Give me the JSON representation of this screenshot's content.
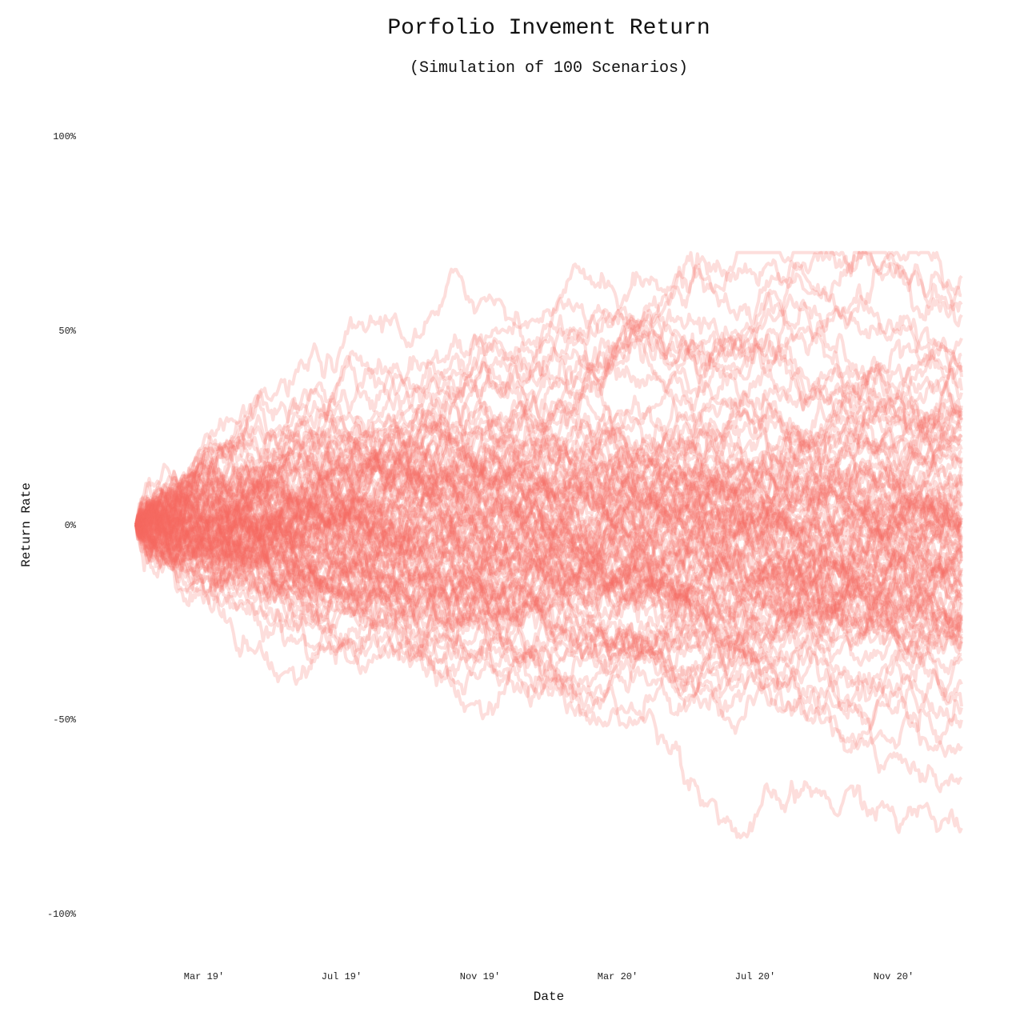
{
  "chart_data": {
    "type": "line",
    "title": "Porfolio Invement Return",
    "subtitle": "(Simulation of 100 Scenarios)",
    "xlabel": "Date",
    "ylabel": "Return Rate",
    "x_start": "2019-01",
    "x_end": "2021-01",
    "x_ticks": [
      "Mar 19'",
      "Jul 19'",
      "Nov 19'",
      "Mar 20'",
      "Jul 20'",
      "Nov 20'"
    ],
    "y_ticks": [
      "100%",
      "50%",
      "0%",
      "-50%",
      "-100%"
    ],
    "ylim": [
      -1.0,
      1.0
    ],
    "grid": false,
    "line_color": "#f76a60",
    "line_opacity": 0.22,
    "n_scenarios": 100,
    "final_values_sample": [
      0.64,
      0.54,
      0.48,
      0.41,
      0.38,
      0.34,
      0.3,
      0.27,
      0.25,
      0.22,
      0.19,
      0.16,
      0.13,
      0.1,
      0.07,
      0.05,
      0.02,
      0.0,
      -0.03,
      -0.06,
      -0.09,
      -0.12,
      -0.16,
      -0.2,
      -0.25,
      -0.3,
      -0.35,
      -0.41,
      -0.47,
      -0.57,
      -0.65,
      -0.78
    ]
  }
}
